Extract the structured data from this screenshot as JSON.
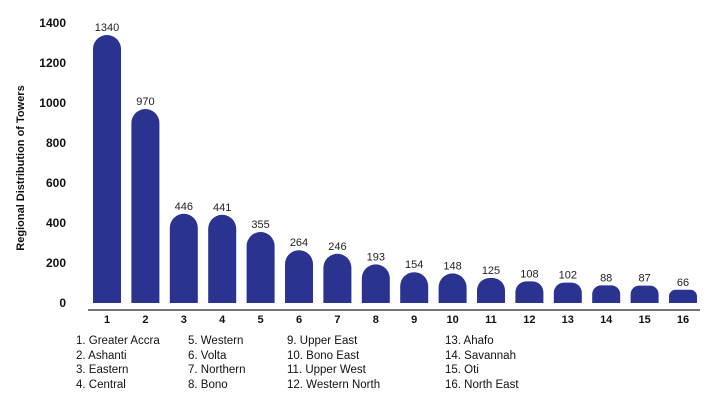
{
  "chart_data": {
    "type": "bar",
    "title": "",
    "xlabel": "",
    "ylabel": "Regional Distribution of Towers",
    "ylim": [
      0,
      1400
    ],
    "yticks": [
      0,
      200,
      400,
      600,
      800,
      1000,
      1200,
      1400
    ],
    "categories": [
      "1",
      "2",
      "3",
      "4",
      "5",
      "6",
      "7",
      "8",
      "9",
      "10",
      "11",
      "12",
      "13",
      "14",
      "15",
      "16"
    ],
    "values": [
      1340,
      970,
      446,
      441,
      355,
      264,
      246,
      193,
      154,
      148,
      125,
      108,
      102,
      88,
      87,
      66
    ],
    "grid": false,
    "bar_color": "#2a3390",
    "legend_placement": "bottom",
    "region_key": [
      "1. Greater Accra",
      "2. Ashanti",
      "3. Eastern",
      "4. Central",
      "5. Western",
      "6. Volta",
      "7. Northern",
      "8. Bono",
      "9.  Upper East",
      "10. Bono East",
      "11. Upper West",
      "12. Western North",
      "13. Ahafo",
      "14. Savannah",
      "15. Oti",
      "16. North East"
    ]
  }
}
